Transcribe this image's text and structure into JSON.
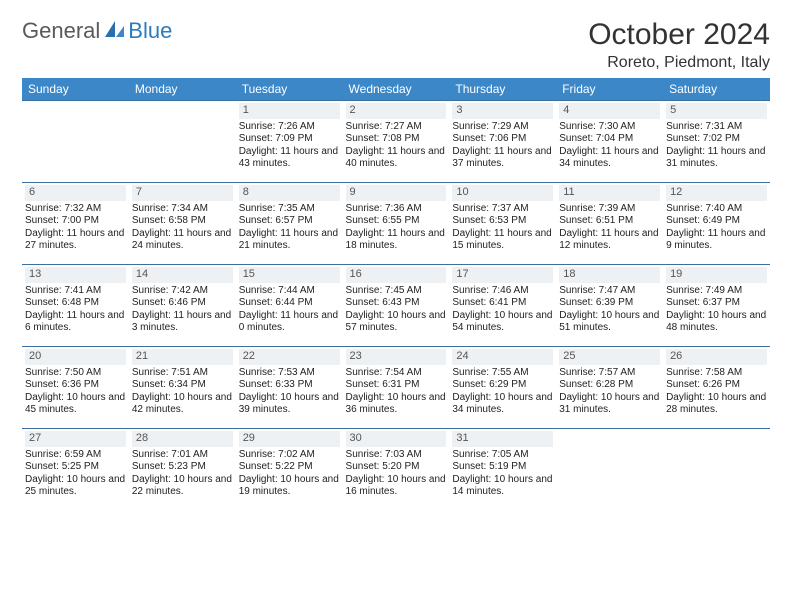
{
  "logo": {
    "general": "General",
    "blue": "Blue"
  },
  "title": "October 2024",
  "location": "Roreto, Piedmont, Italy",
  "colors": {
    "header_bg": "#3b87c8",
    "header_text": "#ffffff",
    "border": "#3b6fa0",
    "daynum_bg": "#eef1f3",
    "daynum_text": "#555555",
    "logo_gray": "#5a5a5a",
    "logo_blue": "#2b7bbf",
    "page_bg": "#ffffff",
    "body_text": "#222222"
  },
  "layout": {
    "type": "calendar-table",
    "columns": 7,
    "rows": 5,
    "cell_fontsize": 10,
    "header_fontsize": 12,
    "title_fontsize": 30,
    "location_fontsize": 16
  },
  "dayHeaders": [
    "Sunday",
    "Monday",
    "Tuesday",
    "Wednesday",
    "Thursday",
    "Friday",
    "Saturday"
  ],
  "weeks": [
    [
      {
        "blank": true
      },
      {
        "blank": true
      },
      {
        "n": "1",
        "sr": "Sunrise: 7:26 AM",
        "ss": "Sunset: 7:09 PM",
        "dl": "Daylight: 11 hours and 43 minutes."
      },
      {
        "n": "2",
        "sr": "Sunrise: 7:27 AM",
        "ss": "Sunset: 7:08 PM",
        "dl": "Daylight: 11 hours and 40 minutes."
      },
      {
        "n": "3",
        "sr": "Sunrise: 7:29 AM",
        "ss": "Sunset: 7:06 PM",
        "dl": "Daylight: 11 hours and 37 minutes."
      },
      {
        "n": "4",
        "sr": "Sunrise: 7:30 AM",
        "ss": "Sunset: 7:04 PM",
        "dl": "Daylight: 11 hours and 34 minutes."
      },
      {
        "n": "5",
        "sr": "Sunrise: 7:31 AM",
        "ss": "Sunset: 7:02 PM",
        "dl": "Daylight: 11 hours and 31 minutes."
      }
    ],
    [
      {
        "n": "6",
        "sr": "Sunrise: 7:32 AM",
        "ss": "Sunset: 7:00 PM",
        "dl": "Daylight: 11 hours and 27 minutes."
      },
      {
        "n": "7",
        "sr": "Sunrise: 7:34 AM",
        "ss": "Sunset: 6:58 PM",
        "dl": "Daylight: 11 hours and 24 minutes."
      },
      {
        "n": "8",
        "sr": "Sunrise: 7:35 AM",
        "ss": "Sunset: 6:57 PM",
        "dl": "Daylight: 11 hours and 21 minutes."
      },
      {
        "n": "9",
        "sr": "Sunrise: 7:36 AM",
        "ss": "Sunset: 6:55 PM",
        "dl": "Daylight: 11 hours and 18 minutes."
      },
      {
        "n": "10",
        "sr": "Sunrise: 7:37 AM",
        "ss": "Sunset: 6:53 PM",
        "dl": "Daylight: 11 hours and 15 minutes."
      },
      {
        "n": "11",
        "sr": "Sunrise: 7:39 AM",
        "ss": "Sunset: 6:51 PM",
        "dl": "Daylight: 11 hours and 12 minutes."
      },
      {
        "n": "12",
        "sr": "Sunrise: 7:40 AM",
        "ss": "Sunset: 6:49 PM",
        "dl": "Daylight: 11 hours and 9 minutes."
      }
    ],
    [
      {
        "n": "13",
        "sr": "Sunrise: 7:41 AM",
        "ss": "Sunset: 6:48 PM",
        "dl": "Daylight: 11 hours and 6 minutes."
      },
      {
        "n": "14",
        "sr": "Sunrise: 7:42 AM",
        "ss": "Sunset: 6:46 PM",
        "dl": "Daylight: 11 hours and 3 minutes."
      },
      {
        "n": "15",
        "sr": "Sunrise: 7:44 AM",
        "ss": "Sunset: 6:44 PM",
        "dl": "Daylight: 11 hours and 0 minutes."
      },
      {
        "n": "16",
        "sr": "Sunrise: 7:45 AM",
        "ss": "Sunset: 6:43 PM",
        "dl": "Daylight: 10 hours and 57 minutes."
      },
      {
        "n": "17",
        "sr": "Sunrise: 7:46 AM",
        "ss": "Sunset: 6:41 PM",
        "dl": "Daylight: 10 hours and 54 minutes."
      },
      {
        "n": "18",
        "sr": "Sunrise: 7:47 AM",
        "ss": "Sunset: 6:39 PM",
        "dl": "Daylight: 10 hours and 51 minutes."
      },
      {
        "n": "19",
        "sr": "Sunrise: 7:49 AM",
        "ss": "Sunset: 6:37 PM",
        "dl": "Daylight: 10 hours and 48 minutes."
      }
    ],
    [
      {
        "n": "20",
        "sr": "Sunrise: 7:50 AM",
        "ss": "Sunset: 6:36 PM",
        "dl": "Daylight: 10 hours and 45 minutes."
      },
      {
        "n": "21",
        "sr": "Sunrise: 7:51 AM",
        "ss": "Sunset: 6:34 PM",
        "dl": "Daylight: 10 hours and 42 minutes."
      },
      {
        "n": "22",
        "sr": "Sunrise: 7:53 AM",
        "ss": "Sunset: 6:33 PM",
        "dl": "Daylight: 10 hours and 39 minutes."
      },
      {
        "n": "23",
        "sr": "Sunrise: 7:54 AM",
        "ss": "Sunset: 6:31 PM",
        "dl": "Daylight: 10 hours and 36 minutes."
      },
      {
        "n": "24",
        "sr": "Sunrise: 7:55 AM",
        "ss": "Sunset: 6:29 PM",
        "dl": "Daylight: 10 hours and 34 minutes."
      },
      {
        "n": "25",
        "sr": "Sunrise: 7:57 AM",
        "ss": "Sunset: 6:28 PM",
        "dl": "Daylight: 10 hours and 31 minutes."
      },
      {
        "n": "26",
        "sr": "Sunrise: 7:58 AM",
        "ss": "Sunset: 6:26 PM",
        "dl": "Daylight: 10 hours and 28 minutes."
      }
    ],
    [
      {
        "n": "27",
        "sr": "Sunrise: 6:59 AM",
        "ss": "Sunset: 5:25 PM",
        "dl": "Daylight: 10 hours and 25 minutes."
      },
      {
        "n": "28",
        "sr": "Sunrise: 7:01 AM",
        "ss": "Sunset: 5:23 PM",
        "dl": "Daylight: 10 hours and 22 minutes."
      },
      {
        "n": "29",
        "sr": "Sunrise: 7:02 AM",
        "ss": "Sunset: 5:22 PM",
        "dl": "Daylight: 10 hours and 19 minutes."
      },
      {
        "n": "30",
        "sr": "Sunrise: 7:03 AM",
        "ss": "Sunset: 5:20 PM",
        "dl": "Daylight: 10 hours and 16 minutes."
      },
      {
        "n": "31",
        "sr": "Sunrise: 7:05 AM",
        "ss": "Sunset: 5:19 PM",
        "dl": "Daylight: 10 hours and 14 minutes."
      },
      {
        "blank": true
      },
      {
        "blank": true
      }
    ]
  ]
}
